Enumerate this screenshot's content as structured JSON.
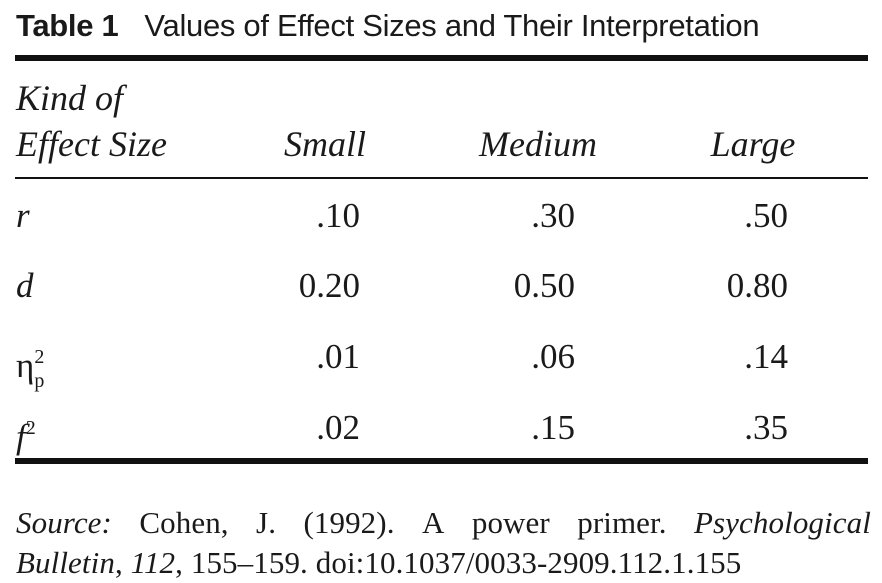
{
  "caption": {
    "label": "Table 1",
    "title": "Values of Effect Sizes and Their Interpretation"
  },
  "table": {
    "stub_header": [
      "Kind of",
      "Effect Size"
    ],
    "columns": [
      "Small",
      "Medium",
      "Large"
    ],
    "rows": [
      {
        "label": "r",
        "values": [
          ".10",
          ".30",
          ".50"
        ]
      },
      {
        "label": "d",
        "values": [
          "0.20",
          "0.50",
          "0.80"
        ]
      },
      {
        "label": "η",
        "label_sup": "2",
        "label_sub": "p",
        "values": [
          ".01",
          ".06",
          ".14"
        ]
      },
      {
        "label": "f",
        "label_sup": "2",
        "values": [
          ".02",
          ".15",
          ".35"
        ]
      }
    ]
  },
  "source": {
    "prefix": "Source:",
    "words_line1": [
      "Cohen,",
      "J.",
      "(1992).",
      "A",
      "power",
      "primer."
    ],
    "journal_line1": "Psychological",
    "journal_line2": "Bulletin",
    "volume": "112",
    "rest": ", 155–159. doi:10.1037/0033-2909.112.1.155"
  }
}
